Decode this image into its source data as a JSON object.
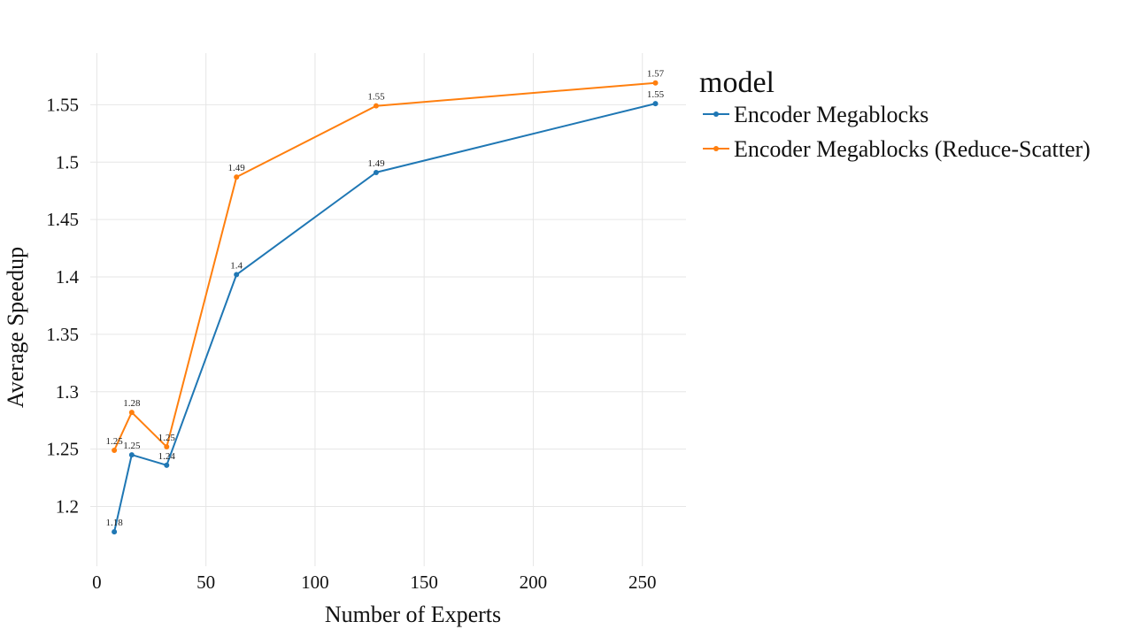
{
  "chart_data": {
    "type": "line",
    "xlabel": "Number of Experts",
    "ylabel": "Average Speedup",
    "xlim": [
      -3,
      270
    ],
    "ylim": [
      1.148,
      1.595
    ],
    "x_ticks": [
      0,
      50,
      100,
      150,
      200,
      250
    ],
    "y_ticks": [
      1.2,
      1.25,
      1.3,
      1.35,
      1.4,
      1.45,
      1.5,
      1.55
    ],
    "y_tick_labels": [
      "1.2",
      "1.25",
      "1.3",
      "1.35",
      "1.4",
      "1.45",
      "1.5",
      "1.55"
    ],
    "x_tick_labels": [
      "0",
      "50",
      "100",
      "150",
      "200",
      "250"
    ],
    "grid": true,
    "legend": {
      "title": "model",
      "placement": "right"
    },
    "series": [
      {
        "name": "Encoder Megablocks",
        "color": "#1f77b4",
        "x": [
          8,
          16,
          32,
          64,
          128,
          256
        ],
        "y": [
          1.178,
          1.245,
          1.236,
          1.402,
          1.491,
          1.551
        ],
        "labels": [
          "1.18",
          "1.25",
          "1.24",
          "1.4",
          "1.49",
          "1.55"
        ]
      },
      {
        "name": "Encoder Megablocks (Reduce-Scatter)",
        "color": "#ff7f0e",
        "x": [
          8,
          16,
          32,
          64,
          128,
          256
        ],
        "y": [
          1.249,
          1.282,
          1.252,
          1.487,
          1.549,
          1.569
        ],
        "labels": [
          "1.25",
          "1.28",
          "1.25",
          "1.49",
          "1.55",
          "1.57"
        ]
      }
    ]
  }
}
